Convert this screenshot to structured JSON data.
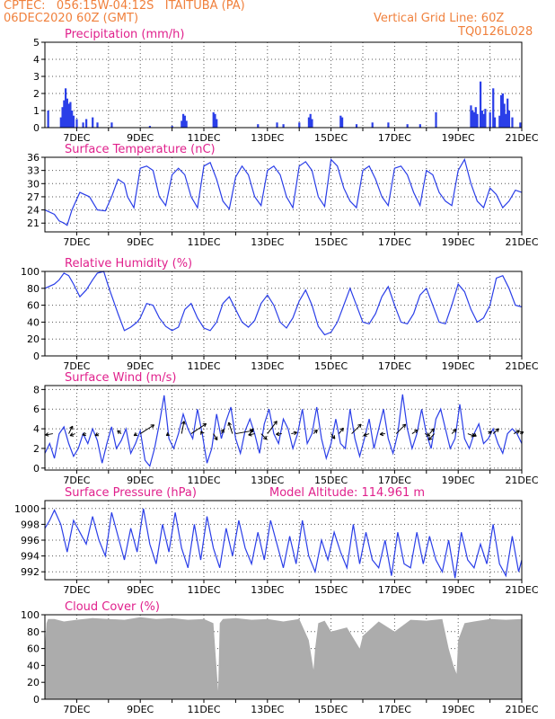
{
  "header": {
    "line1": "CPTEC:   056:15W-04:12S   ITAITUBA (PA)",
    "line2": "06DEC2020 60Z (GMT)",
    "vgrid": "Vertical Grid Line: 60Z",
    "code": "TQ0126L028"
  },
  "x_axis": {
    "labels": [
      "7DEC",
      "9DEC",
      "11DEC",
      "13DEC",
      "15DEC",
      "17DEC",
      "19DEC",
      "21DEC"
    ],
    "start_day": 6.0,
    "end_day": 21.0
  },
  "colors": {
    "line": "#2a3ee8",
    "bar": "#2a3ee8",
    "cloud": "#acacac",
    "title": "#e0208c",
    "header": "#f0803c"
  },
  "chart_data": [
    {
      "type": "bar",
      "title": "Precipitation (mm/h)",
      "ylim": [
        0,
        5
      ],
      "yticks": [
        0,
        1,
        2,
        3,
        4,
        5
      ],
      "events": [
        {
          "day": 6.1,
          "value": 1.0
        },
        {
          "day": 6.5,
          "value": 0.6
        },
        {
          "day": 6.55,
          "value": 1.2
        },
        {
          "day": 6.6,
          "value": 1.6
        },
        {
          "day": 6.65,
          "value": 2.3
        },
        {
          "day": 6.7,
          "value": 1.7
        },
        {
          "day": 6.75,
          "value": 1.4
        },
        {
          "day": 6.8,
          "value": 1.5
        },
        {
          "day": 6.85,
          "value": 1.0
        },
        {
          "day": 6.9,
          "value": 0.7
        },
        {
          "day": 7.0,
          "value": 0.5
        },
        {
          "day": 7.2,
          "value": 0.3
        },
        {
          "day": 7.3,
          "value": 0.5
        },
        {
          "day": 7.5,
          "value": 0.6
        },
        {
          "day": 7.65,
          "value": 0.3
        },
        {
          "day": 8.1,
          "value": 0.3
        },
        {
          "day": 9.3,
          "value": 0.1
        },
        {
          "day": 10.0,
          "value": 0.1
        },
        {
          "day": 10.3,
          "value": 0.4
        },
        {
          "day": 10.35,
          "value": 0.8
        },
        {
          "day": 10.4,
          "value": 0.7
        },
        {
          "day": 10.45,
          "value": 0.4
        },
        {
          "day": 11.3,
          "value": 0.9
        },
        {
          "day": 11.35,
          "value": 0.8
        },
        {
          "day": 11.4,
          "value": 0.5
        },
        {
          "day": 12.7,
          "value": 0.2
        },
        {
          "day": 13.3,
          "value": 0.3
        },
        {
          "day": 13.5,
          "value": 0.2
        },
        {
          "day": 14.0,
          "value": 0.3
        },
        {
          "day": 14.3,
          "value": 0.6
        },
        {
          "day": 14.35,
          "value": 0.8
        },
        {
          "day": 14.4,
          "value": 0.5
        },
        {
          "day": 15.3,
          "value": 0.7
        },
        {
          "day": 15.35,
          "value": 0.6
        },
        {
          "day": 15.8,
          "value": 0.2
        },
        {
          "day": 16.3,
          "value": 0.3
        },
        {
          "day": 16.8,
          "value": 0.3
        },
        {
          "day": 17.4,
          "value": 0.2
        },
        {
          "day": 17.8,
          "value": 0.2
        },
        {
          "day": 18.3,
          "value": 0.9
        },
        {
          "day": 19.4,
          "value": 1.3
        },
        {
          "day": 19.45,
          "value": 1.0
        },
        {
          "day": 19.5,
          "value": 0.9
        },
        {
          "day": 19.55,
          "value": 1.2
        },
        {
          "day": 19.6,
          "value": 0.8
        },
        {
          "day": 19.7,
          "value": 2.7
        },
        {
          "day": 19.75,
          "value": 1.0
        },
        {
          "day": 19.8,
          "value": 0.8
        },
        {
          "day": 19.85,
          "value": 1.1
        },
        {
          "day": 20.0,
          "value": 0.9
        },
        {
          "day": 20.1,
          "value": 2.3
        },
        {
          "day": 20.15,
          "value": 0.6
        },
        {
          "day": 20.3,
          "value": 0.7
        },
        {
          "day": 20.35,
          "value": 1.9
        },
        {
          "day": 20.4,
          "value": 2.0
        },
        {
          "day": 20.45,
          "value": 1.4
        },
        {
          "day": 20.5,
          "value": 0.8
        },
        {
          "day": 20.55,
          "value": 1.7
        },
        {
          "day": 20.6,
          "value": 1.0
        },
        {
          "day": 20.7,
          "value": 0.6
        },
        {
          "day": 20.95,
          "value": 0.3
        }
      ]
    },
    {
      "type": "line",
      "title": "Surface Temperature (nC)",
      "ylim": [
        19,
        36
      ],
      "yticks": [
        21,
        24,
        27,
        30,
        33,
        36
      ],
      "x": [
        6.0,
        6.3,
        6.45,
        6.6,
        6.7,
        6.85,
        7.1,
        7.4,
        7.65,
        7.9,
        8.1,
        8.3,
        8.5,
        8.6,
        8.8,
        9.0,
        9.2,
        9.4,
        9.6,
        9.8,
        10.0,
        10.2,
        10.4,
        10.6,
        10.8,
        11.0,
        11.2,
        11.4,
        11.6,
        11.8,
        12.0,
        12.2,
        12.4,
        12.6,
        12.8,
        13.0,
        13.2,
        13.4,
        13.6,
        13.8,
        14.0,
        14.2,
        14.4,
        14.6,
        14.8,
        15.0,
        15.2,
        15.4,
        15.6,
        15.8,
        16.0,
        16.2,
        16.4,
        16.6,
        16.8,
        17.0,
        17.2,
        17.4,
        17.6,
        17.8,
        18.0,
        18.2,
        18.4,
        18.6,
        18.8,
        19.0,
        19.2,
        19.4,
        19.6,
        19.8,
        20.0,
        20.2,
        20.4,
        20.6,
        20.8,
        21.0
      ],
      "y": [
        24.0,
        23.0,
        21.5,
        21.0,
        20.5,
        24.0,
        28.0,
        27.0,
        24.0,
        23.8,
        27.0,
        31.0,
        30.0,
        27.0,
        24.5,
        33.5,
        34.0,
        33.0,
        27.0,
        25.0,
        32.0,
        33.5,
        32.0,
        27.0,
        24.5,
        34.0,
        34.8,
        31.0,
        26.0,
        24.2,
        31.5,
        34.0,
        32.0,
        27.0,
        25.0,
        33.0,
        34.0,
        32.0,
        27.0,
        24.5,
        34.0,
        35.0,
        33.0,
        27.0,
        24.8,
        35.5,
        34.0,
        29.0,
        26.0,
        24.5,
        33.0,
        34.0,
        31.0,
        27.0,
        25.0,
        33.5,
        34.0,
        32.0,
        28.0,
        25.0,
        33.0,
        32.0,
        28.0,
        26.0,
        25.0,
        33.0,
        35.5,
        30.0,
        26.0,
        24.5,
        29.0,
        27.5,
        24.5,
        26.0,
        28.5,
        28.0
      ]
    },
    {
      "type": "line",
      "title": "Relative Humidity (%)",
      "ylim": [
        0,
        100
      ],
      "yticks": [
        0,
        20,
        40,
        60,
        80,
        100
      ],
      "x": [
        6.0,
        6.3,
        6.45,
        6.6,
        6.75,
        6.9,
        7.1,
        7.3,
        7.5,
        7.65,
        7.85,
        8.0,
        8.3,
        8.5,
        8.7,
        8.9,
        9.0,
        9.2,
        9.4,
        9.6,
        9.8,
        10.0,
        10.2,
        10.4,
        10.6,
        10.8,
        11.0,
        11.2,
        11.4,
        11.6,
        11.8,
        12.0,
        12.2,
        12.4,
        12.6,
        12.8,
        13.0,
        13.2,
        13.4,
        13.6,
        13.8,
        14.0,
        14.2,
        14.4,
        14.6,
        14.8,
        15.0,
        15.2,
        15.4,
        15.6,
        15.8,
        16.0,
        16.2,
        16.4,
        16.6,
        16.8,
        17.0,
        17.2,
        17.4,
        17.6,
        17.8,
        18.0,
        18.2,
        18.4,
        18.6,
        18.8,
        19.0,
        19.2,
        19.4,
        19.6,
        19.8,
        20.0,
        20.2,
        20.4,
        20.6,
        20.8,
        21.0
      ],
      "y": [
        80,
        85,
        90,
        98,
        95,
        85,
        70,
        78,
        90,
        98,
        100,
        82,
        50,
        30,
        34,
        40,
        45,
        62,
        60,
        45,
        35,
        30,
        34,
        55,
        62,
        45,
        33,
        30,
        40,
        62,
        70,
        55,
        40,
        34,
        42,
        62,
        72,
        60,
        40,
        33,
        45,
        65,
        78,
        60,
        35,
        25,
        28,
        40,
        60,
        80,
        60,
        40,
        38,
        50,
        70,
        82,
        60,
        40,
        38,
        50,
        72,
        80,
        60,
        40,
        38,
        60,
        85,
        76,
        55,
        40,
        45,
        60,
        92,
        95,
        80,
        60,
        58
      ]
    },
    {
      "type": "line",
      "title": "Surface Wind (m/s)",
      "ylim": [
        -0.2,
        8.4
      ],
      "yticks": [
        0,
        2,
        4,
        6,
        8
      ],
      "x": [
        6.0,
        6.15,
        6.3,
        6.45,
        6.6,
        6.75,
        6.9,
        7.05,
        7.2,
        7.35,
        7.5,
        7.65,
        7.8,
        7.95,
        8.1,
        8.25,
        8.4,
        8.55,
        8.7,
        8.85,
        9.0,
        9.15,
        9.3,
        9.45,
        9.6,
        9.75,
        9.9,
        10.05,
        10.2,
        10.35,
        10.5,
        10.65,
        10.8,
        10.95,
        11.1,
        11.25,
        11.4,
        11.55,
        11.7,
        11.85,
        12.0,
        12.15,
        12.3,
        12.45,
        12.6,
        12.75,
        12.9,
        13.05,
        13.2,
        13.35,
        13.5,
        13.65,
        13.8,
        13.95,
        14.1,
        14.25,
        14.4,
        14.55,
        14.7,
        14.85,
        15.0,
        15.15,
        15.3,
        15.45,
        15.6,
        15.75,
        15.9,
        16.05,
        16.2,
        16.35,
        16.5,
        16.65,
        16.8,
        16.95,
        17.1,
        17.25,
        17.4,
        17.55,
        17.7,
        17.85,
        18.0,
        18.15,
        18.3,
        18.45,
        18.6,
        18.75,
        18.9,
        19.05,
        19.2,
        19.35,
        19.5,
        19.65,
        19.8,
        19.95,
        20.1,
        20.25,
        20.4,
        20.55,
        20.7,
        20.85,
        21.0
      ],
      "y": [
        1.5,
        2.5,
        1.0,
        3.5,
        4.2,
        2.5,
        1.2,
        2.0,
        3.5,
        2.5,
        4.0,
        2.8,
        0.5,
        2.5,
        4.2,
        2.0,
        2.8,
        4.0,
        1.5,
        2.5,
        3.8,
        0.8,
        0.2,
        2.0,
        4.5,
        7.4,
        3.0,
        2.0,
        3.5,
        5.5,
        4.0,
        3.0,
        6.0,
        3.5,
        0.5,
        2.0,
        5.5,
        3.0,
        4.8,
        6.2,
        3.0,
        1.5,
        3.8,
        5.0,
        3.5,
        1.5,
        4.5,
        6.0,
        3.5,
        2.5,
        5.0,
        4.0,
        2.0,
        3.5,
        6.0,
        2.5,
        3.5,
        6.2,
        3.0,
        1.0,
        2.5,
        5.0,
        2.5,
        2.0,
        6.0,
        3.0,
        1.2,
        3.0,
        5.0,
        2.0,
        4.0,
        6.0,
        3.0,
        1.5,
        3.5,
        7.5,
        4.0,
        2.0,
        3.5,
        6.0,
        3.5,
        2.0,
        5.0,
        6.0,
        4.0,
        2.0,
        3.0,
        6.5,
        3.0,
        2.0,
        3.5,
        4.5,
        2.5,
        3.0,
        4.0,
        2.5,
        1.5,
        3.5,
        4.0,
        3.5,
        2.5
      ]
    },
    {
      "type": "line",
      "title": "Surface Pressure (hPa)",
      "annotation": "Model Altitude: 114.961 m",
      "ylim": [
        991,
        1001
      ],
      "yticks": [
        992,
        994,
        996,
        998,
        1000
      ],
      "x": [
        6.0,
        6.15,
        6.3,
        6.5,
        6.7,
        6.9,
        7.1,
        7.3,
        7.5,
        7.7,
        7.9,
        8.1,
        8.3,
        8.5,
        8.7,
        8.9,
        9.1,
        9.3,
        9.5,
        9.7,
        9.9,
        10.1,
        10.3,
        10.5,
        10.7,
        10.9,
        11.1,
        11.3,
        11.5,
        11.7,
        11.9,
        12.1,
        12.3,
        12.5,
        12.7,
        12.9,
        13.1,
        13.3,
        13.5,
        13.7,
        13.9,
        14.1,
        14.3,
        14.5,
        14.7,
        14.9,
        15.1,
        15.3,
        15.5,
        15.7,
        15.9,
        16.1,
        16.3,
        16.5,
        16.7,
        16.9,
        17.1,
        17.3,
        17.5,
        17.7,
        17.9,
        18.1,
        18.3,
        18.5,
        18.7,
        18.9,
        19.1,
        19.3,
        19.5,
        19.7,
        19.9,
        20.1,
        20.3,
        20.5,
        20.7,
        20.9,
        21.0
      ],
      "y": [
        997.5,
        998.5,
        999.8,
        998.0,
        994.5,
        998.5,
        997.0,
        995.5,
        999.0,
        996.0,
        994.0,
        999.5,
        996.5,
        993.5,
        997.5,
        994.5,
        1000.0,
        995.5,
        993.0,
        998.0,
        994.5,
        999.5,
        995.0,
        992.5,
        998.0,
        993.5,
        999.0,
        995.0,
        992.5,
        997.5,
        994.0,
        998.5,
        995.0,
        993.0,
        997.0,
        993.5,
        998.5,
        995.5,
        992.5,
        996.5,
        993.0,
        998.5,
        994.0,
        992.0,
        996.0,
        993.5,
        997.0,
        994.5,
        992.5,
        998.0,
        993.0,
        997.0,
        993.5,
        992.5,
        996.0,
        991.5,
        997.0,
        993.0,
        992.5,
        997.0,
        993.0,
        996.5,
        993.5,
        992.0,
        996.0,
        991.2,
        997.0,
        993.5,
        992.5,
        995.5,
        993.0,
        998.0,
        993.0,
        991.5,
        996.5,
        992.0,
        993.5
      ]
    },
    {
      "type": "area",
      "title": "Cloud Cover (%)",
      "ylim": [
        0,
        100
      ],
      "yticks": [
        0,
        20,
        40,
        60,
        80,
        100
      ],
      "x": [
        6.0,
        6.05,
        6.1,
        6.3,
        6.6,
        7.0,
        7.5,
        8.0,
        8.5,
        9.0,
        9.5,
        10.0,
        10.5,
        11.0,
        11.3,
        11.45,
        11.5,
        11.6,
        12.0,
        12.5,
        13.0,
        13.5,
        14.0,
        14.3,
        14.45,
        14.5,
        14.6,
        14.8,
        15.0,
        15.5,
        15.9,
        16.0,
        16.5,
        17.0,
        17.5,
        18.0,
        18.5,
        18.7,
        18.85,
        18.95,
        19.0,
        19.2,
        19.5,
        20.0,
        20.5,
        21.0
      ],
      "y": [
        60,
        90,
        95,
        95,
        92,
        94,
        96,
        95,
        94,
        97,
        95,
        96,
        94,
        95,
        90,
        10,
        90,
        95,
        96,
        94,
        95,
        92,
        95,
        70,
        35,
        60,
        90,
        93,
        80,
        85,
        60,
        75,
        92,
        80,
        94,
        93,
        95,
        60,
        40,
        30,
        70,
        90,
        92,
        95,
        94,
        95
      ]
    }
  ],
  "wind_vectors": [
    {
      "day": 6.25,
      "u": -1.2,
      "v": -0.2
    },
    {
      "day": 6.75,
      "u": 0.6,
      "v": 1.2
    },
    {
      "day": 6.95,
      "u": -0.8,
      "v": -0.3
    },
    {
      "day": 7.3,
      "u": -0.6,
      "v": -0.2
    },
    {
      "day": 7.7,
      "u": -0.6,
      "v": -0.3
    },
    {
      "day": 8.4,
      "u": -0.6,
      "v": 0.5
    },
    {
      "day": 8.9,
      "u": -0.5,
      "v": -0.3
    },
    {
      "day": 9.0,
      "u": 2.2,
      "v": 1.4
    },
    {
      "day": 9.9,
      "u": -0.4,
      "v": -0.3
    },
    {
      "day": 10.3,
      "u": 0.4,
      "v": 2.0
    },
    {
      "day": 10.6,
      "u": 2.4,
      "v": 1.6
    },
    {
      "day": 10.95,
      "u": -0.2,
      "v": 0.4
    },
    {
      "day": 11.3,
      "u": 0.6,
      "v": -1.0
    },
    {
      "day": 11.55,
      "u": 0.4,
      "v": 0.7
    },
    {
      "day": 11.9,
      "u": -0.6,
      "v": 1.8
    },
    {
      "day": 12.0,
      "u": 2.8,
      "v": 0.5
    },
    {
      "day": 12.45,
      "u": 0.5,
      "v": 0.8
    },
    {
      "day": 12.6,
      "u": -1.0,
      "v": -0.2
    },
    {
      "day": 12.8,
      "u": 0.9,
      "v": -0.9
    },
    {
      "day": 13.0,
      "u": 1.5,
      "v": 2.0
    },
    {
      "day": 13.45,
      "u": -0.9,
      "v": -0.1
    },
    {
      "day": 13.75,
      "u": 0.9,
      "v": 0.2
    },
    {
      "day": 14.45,
      "u": 0.6,
      "v": 0.6
    },
    {
      "day": 15.0,
      "u": 0.6,
      "v": -0.8
    },
    {
      "day": 15.25,
      "u": 0.7,
      "v": 0.9
    },
    {
      "day": 15.65,
      "u": 1.5,
      "v": 1.5
    },
    {
      "day": 16.2,
      "u": -0.9,
      "v": -0.3
    },
    {
      "day": 16.7,
      "u": -0.8,
      "v": -0.1
    },
    {
      "day": 17.05,
      "u": 1.5,
      "v": 1.5
    },
    {
      "day": 17.55,
      "u": 0.9,
      "v": 0.6
    },
    {
      "day": 17.95,
      "u": 0.8,
      "v": -0.3
    },
    {
      "day": 18.1,
      "u": 0.7,
      "v": 0.8
    },
    {
      "day": 18.25,
      "u": -0.9,
      "v": -1.0
    },
    {
      "day": 18.8,
      "u": 0.7,
      "v": 0.7
    },
    {
      "day": 19.3,
      "u": 1.1,
      "v": -0.4
    },
    {
      "day": 19.45,
      "u": 0.6,
      "v": -0.4
    },
    {
      "day": 19.95,
      "u": 0.5,
      "v": 0.4
    },
    {
      "day": 20.1,
      "u": 0.9,
      "v": 0.8
    },
    {
      "day": 20.75,
      "u": 0.9,
      "v": 0.5
    },
    {
      "day": 20.95,
      "u": 0.5,
      "v": 0.3
    }
  ]
}
